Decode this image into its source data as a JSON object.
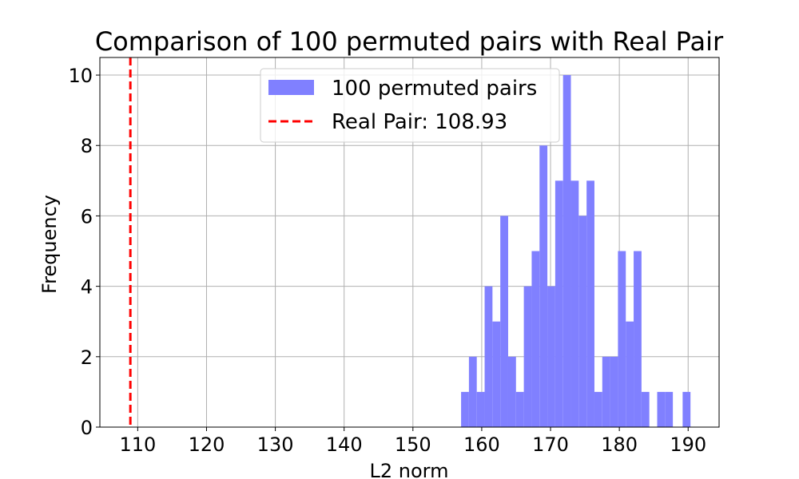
{
  "chart_data": {
    "type": "bar",
    "title": "Comparison of 100 permuted pairs with Real Pair",
    "xlabel": "L2 norm",
    "ylabel": "Frequency",
    "xlim": [
      104.5,
      194.5
    ],
    "ylim": [
      0,
      10.5
    ],
    "xticks": [
      110,
      120,
      130,
      140,
      150,
      160,
      170,
      180,
      190
    ],
    "yticks": [
      0,
      2,
      4,
      6,
      8,
      10
    ],
    "grid": true,
    "legend_position": "upper center",
    "bin_width": 1.14,
    "series": [
      {
        "name": "100 permuted pairs",
        "color": "#8080ff",
        "bins": [
          {
            "x": 157.0,
            "count": 1
          },
          {
            "x": 158.14,
            "count": 2
          },
          {
            "x": 159.28,
            "count": 1
          },
          {
            "x": 160.42,
            "count": 4
          },
          {
            "x": 161.56,
            "count": 3
          },
          {
            "x": 162.7,
            "count": 6
          },
          {
            "x": 163.84,
            "count": 2
          },
          {
            "x": 164.98,
            "count": 1
          },
          {
            "x": 166.12,
            "count": 4
          },
          {
            "x": 167.26,
            "count": 5
          },
          {
            "x": 168.4,
            "count": 8
          },
          {
            "x": 169.54,
            "count": 4
          },
          {
            "x": 170.68,
            "count": 7
          },
          {
            "x": 171.82,
            "count": 10
          },
          {
            "x": 172.96,
            "count": 7
          },
          {
            "x": 174.1,
            "count": 6
          },
          {
            "x": 175.24,
            "count": 7
          },
          {
            "x": 176.38,
            "count": 1
          },
          {
            "x": 177.52,
            "count": 2
          },
          {
            "x": 178.66,
            "count": 2
          },
          {
            "x": 179.8,
            "count": 5
          },
          {
            "x": 180.94,
            "count": 3
          },
          {
            "x": 182.08,
            "count": 5
          },
          {
            "x": 183.22,
            "count": 1
          },
          {
            "x": 185.5,
            "count": 1
          },
          {
            "x": 186.64,
            "count": 1
          },
          {
            "x": 189.2,
            "count": 1
          }
        ]
      },
      {
        "name": "Real Pair: 108.93",
        "color": "#ff0000",
        "line_x": 108.93
      }
    ]
  }
}
